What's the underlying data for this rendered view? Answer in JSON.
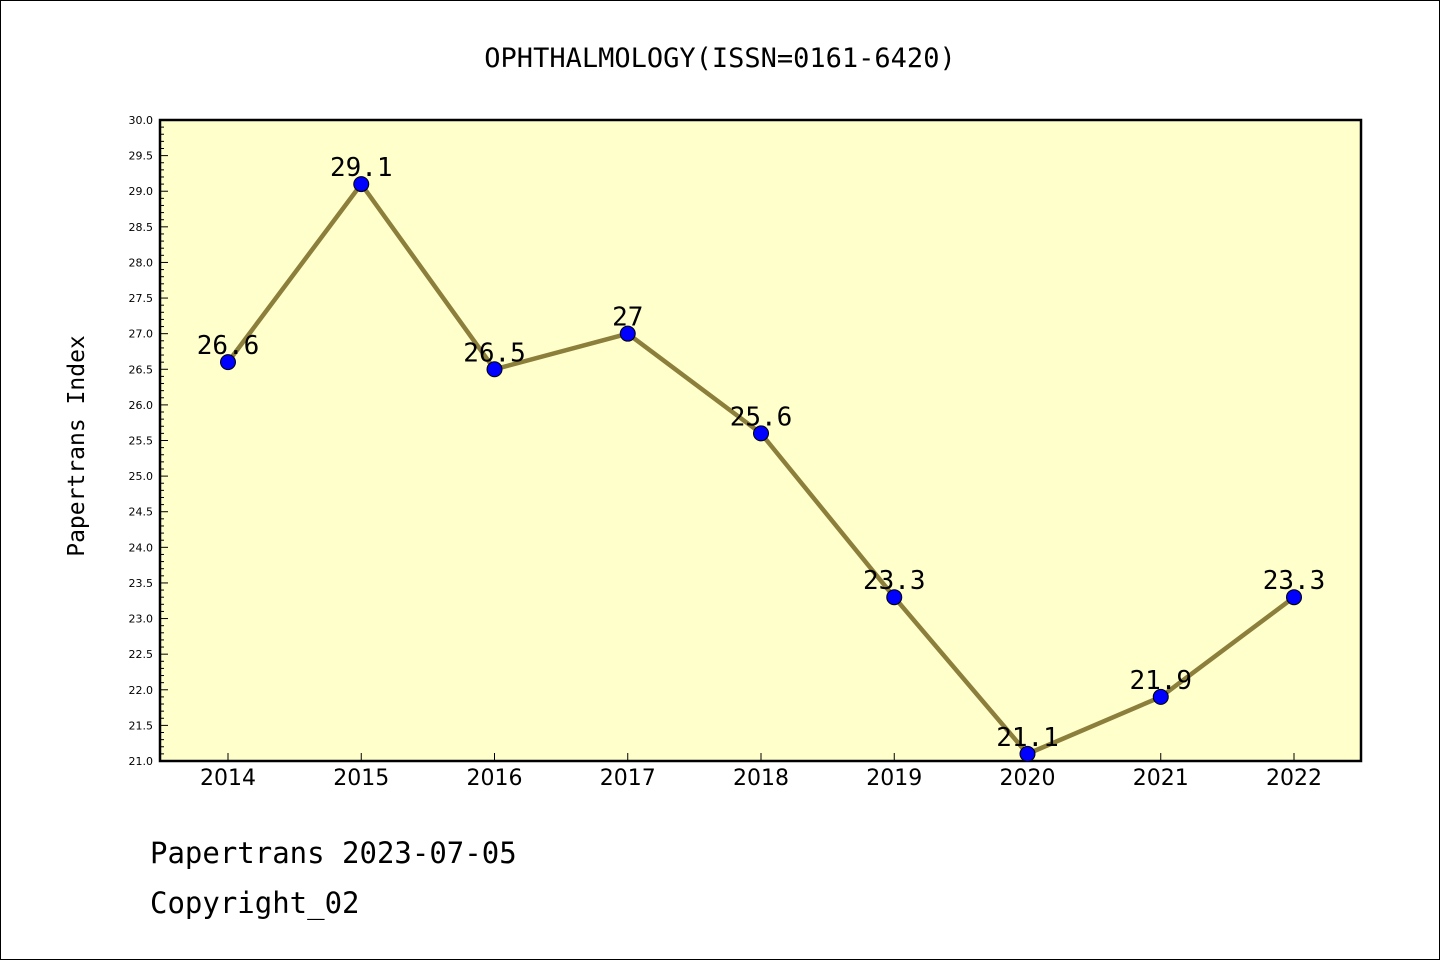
{
  "chart_data": {
    "type": "line",
    "title": "OPHTHALMOLOGY(ISSN=0161-6420)",
    "xlabel": "",
    "ylabel": "Papertrans Index",
    "categories": [
      "2014",
      "2015",
      "2016",
      "2017",
      "2018",
      "2019",
      "2020",
      "2021",
      "2022"
    ],
    "series": [
      {
        "values": [
          26.6,
          29.1,
          26.5,
          27,
          25.6,
          23.3,
          21.1,
          21.9,
          23.3
        ],
        "labels": [
          "26.6",
          "29.1",
          "26.5",
          "27",
          "25.6",
          "23.3",
          "21.1",
          "21.9",
          "23.3"
        ]
      }
    ],
    "ylim": [
      21.0,
      30.0
    ],
    "yticks": [
      "21.0",
      "21.5",
      "22.0",
      "22.5",
      "23.0",
      "23.5",
      "24.0",
      "24.5",
      "25.0",
      "25.5",
      "26.0",
      "26.5",
      "27.0",
      "27.5",
      "28.0",
      "28.5",
      "29.0",
      "29.5",
      "30.0"
    ],
    "grid": false,
    "colors": {
      "plot_background": "#ffffcc",
      "line": "#8c7e3b",
      "marker": "#0000ff"
    }
  },
  "footer": {
    "line1": "Papertrans 2023-07-05",
    "line2": "Copyright_02"
  }
}
